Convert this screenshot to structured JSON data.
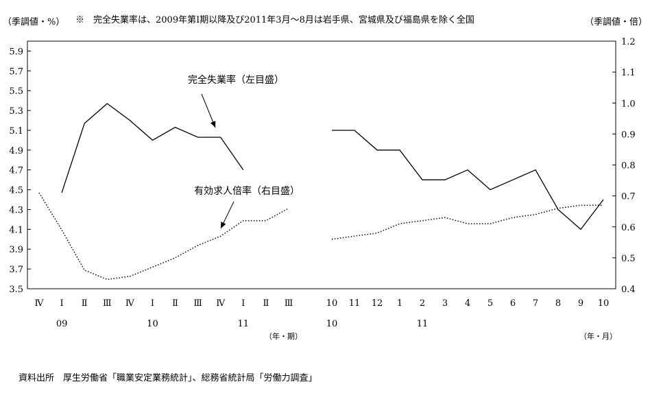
{
  "chart_data": {
    "type": "line",
    "header": {
      "left_unit": "（季調値・%）",
      "note": "※　完全失業率は、2009年第Ⅰ期以降及び2011年3月～8月は岩手県、宮城県及び福島県を除く全国",
      "right_unit": "（季調値・倍）"
    },
    "y_left": {
      "min": 3.5,
      "max": 6.0,
      "ticks": [
        "5.9",
        "5.7",
        "5.5",
        "5.3",
        "5.1",
        "4.9",
        "4.7",
        "4.5",
        "4.3",
        "4.1",
        "3.9",
        "3.7",
        "3.5"
      ]
    },
    "y_right": {
      "min": 0.4,
      "max": 1.2,
      "ticks": [
        "1.2",
        "1.1",
        "1.0",
        "0.9",
        "0.8",
        "0.7",
        "0.6",
        "0.5",
        "0.4"
      ]
    },
    "panels": [
      {
        "unit_label": "（年・期）",
        "categories": [
          "Ⅳ",
          "Ⅰ",
          "Ⅱ",
          "Ⅲ",
          "Ⅳ",
          "Ⅰ",
          "Ⅱ",
          "Ⅲ",
          "Ⅳ",
          "Ⅰ",
          "Ⅱ",
          "Ⅲ"
        ],
        "year_labels": [
          {
            "at": 1,
            "text": "09"
          },
          {
            "at": 5,
            "text": "10"
          },
          {
            "at": 9,
            "text": "11"
          }
        ]
      },
      {
        "unit_label": "（年・月）",
        "categories": [
          "10",
          "11",
          "12",
          "1",
          "2",
          "3",
          "4",
          "5",
          "6",
          "7",
          "8",
          "9",
          "10"
        ],
        "year_labels": [
          {
            "at": 0,
            "text": "10"
          },
          {
            "at": 4,
            "text": "11"
          }
        ]
      }
    ],
    "series": [
      {
        "name": "完全失業率（左目盛）",
        "axis": "left",
        "style": "solid",
        "panel_values": [
          [
            null,
            4.47,
            5.17,
            5.37,
            5.2,
            5.0,
            5.13,
            5.03,
            5.03,
            4.7,
            null,
            null
          ],
          [
            5.1,
            5.1,
            4.9,
            4.9,
            4.6,
            4.6,
            4.7,
            4.5,
            4.6,
            4.7,
            4.3,
            4.1,
            4.4
          ]
        ]
      },
      {
        "name": "有効求人倍率（右目盛）",
        "axis": "right",
        "style": "dotted",
        "panel_values": [
          [
            0.71,
            0.59,
            0.46,
            0.43,
            0.44,
            0.47,
            0.5,
            0.54,
            0.57,
            0.62,
            0.62,
            0.66
          ],
          [
            0.56,
            0.57,
            0.58,
            0.61,
            0.62,
            0.63,
            0.61,
            0.61,
            0.63,
            0.64,
            0.66,
            0.67,
            0.67
          ]
        ]
      }
    ]
  },
  "source": "資料出所　厚生労働省「職業安定業務統計」、総務省統計局「労働力調査」"
}
